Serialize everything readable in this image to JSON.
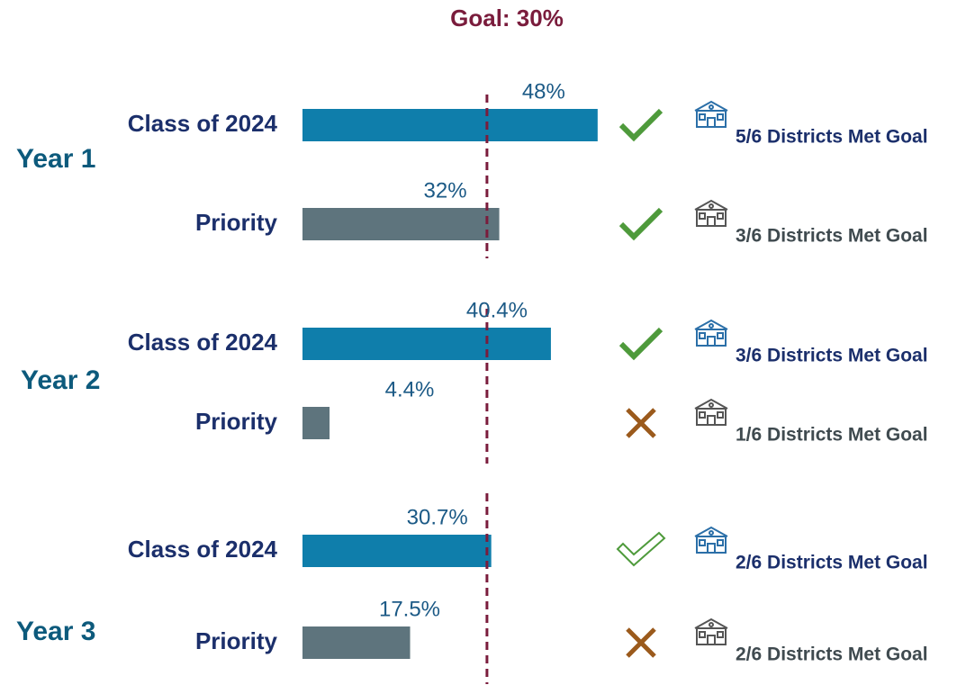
{
  "chart_data": {
    "type": "bar",
    "title": "Goal: 30%",
    "goal": 30,
    "groups": [
      {
        "name": "Year 1",
        "bars": [
          {
            "label": "Class of 2024",
            "value": 48,
            "value_label": "48%",
            "color": "#0f7eab",
            "status": "check",
            "note": "5/6 Districts Met Goal",
            "note_color": "#1b2f6b"
          },
          {
            "label": "Priority",
            "value": 32,
            "value_label": "32%",
            "color": "#5e747d",
            "status": "check",
            "note": "3/6 Districts Met Goal",
            "note_color": "#3f4a4f"
          }
        ]
      },
      {
        "name": "Year 2",
        "bars": [
          {
            "label": "Class of 2024",
            "value": 40.4,
            "value_label": "40.4%",
            "color": "#0f7eab",
            "status": "check",
            "note": "3/6 Districts Met Goal",
            "note_color": "#1b2f6b"
          },
          {
            "label": "Priority",
            "value": 4.4,
            "value_label": "4.4%",
            "color": "#5e747d",
            "status": "cross",
            "note": "1/6 Districts Met Goal",
            "note_color": "#3f4a4f"
          }
        ]
      },
      {
        "name": "Year 3",
        "bars": [
          {
            "label": "Class of 2024",
            "value": 30.7,
            "value_label": "30.7%",
            "color": "#0f7eab",
            "status": "outline-check",
            "note": "2/6 Districts Met Goal",
            "note_color": "#1b2f6b"
          },
          {
            "label": "Priority",
            "value": 17.5,
            "value_label": "17.5%",
            "color": "#5e747d",
            "status": "cross",
            "note": "2/6 Districts Met Goal",
            "note_color": "#3f4a4f"
          }
        ]
      }
    ]
  }
}
